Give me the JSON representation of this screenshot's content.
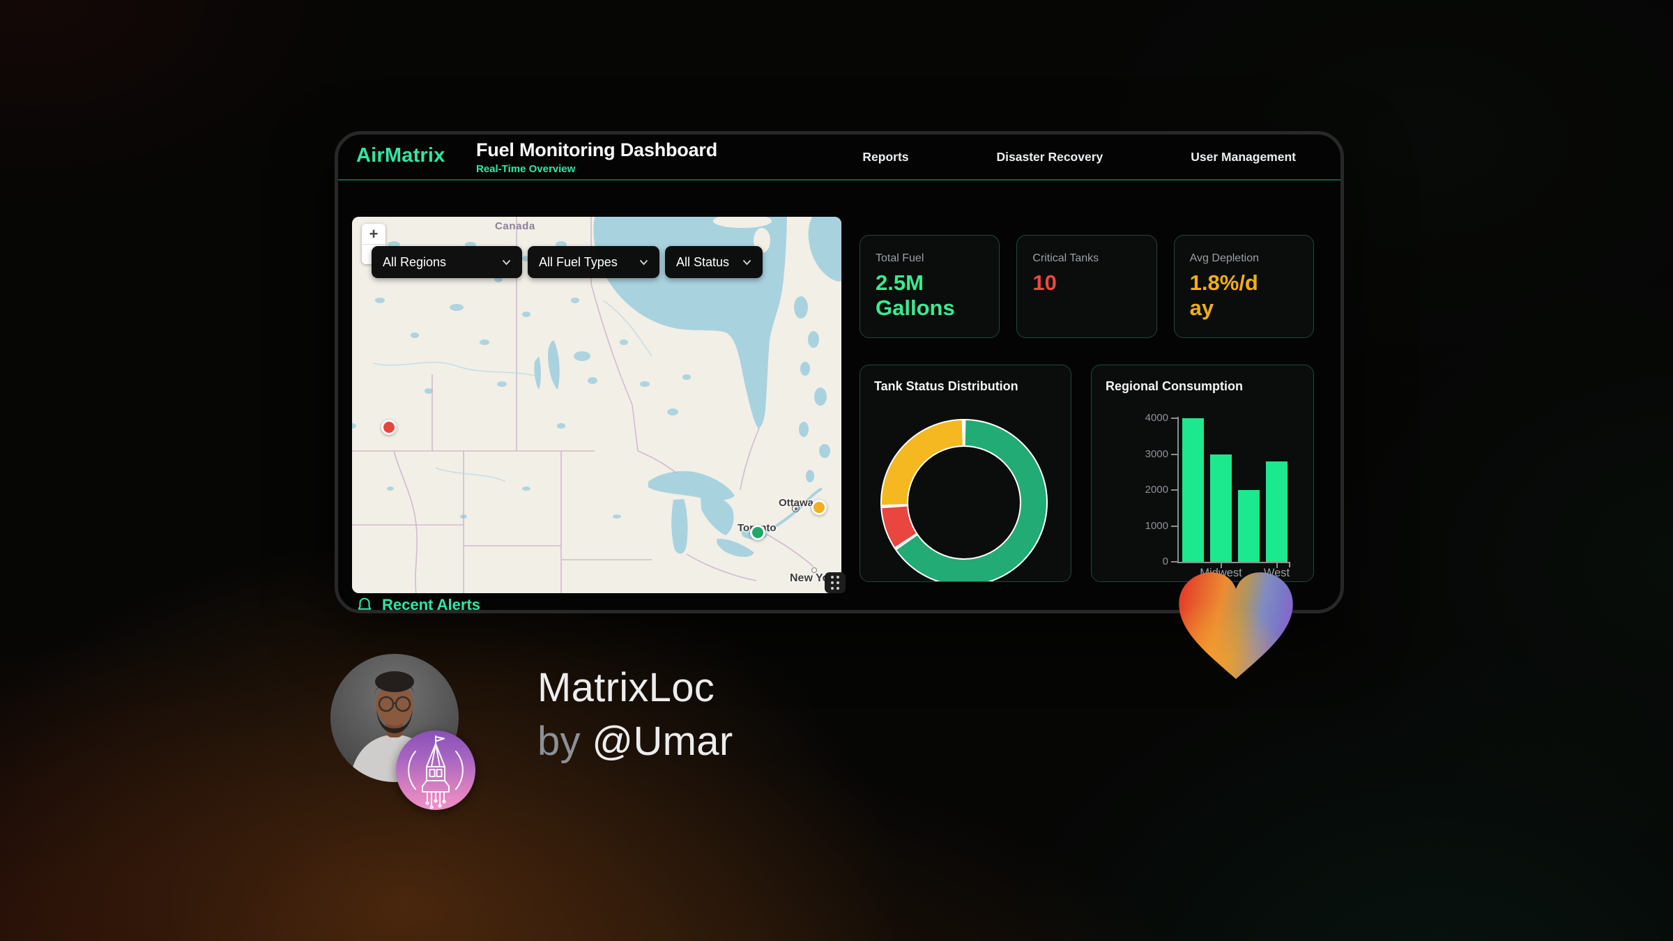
{
  "header": {
    "logo": "AirMatrix",
    "title": "Fuel Monitoring Dashboard",
    "subtitle": "Real-Time Overview",
    "nav": [
      {
        "label": "Reports"
      },
      {
        "label": "Disaster Recovery"
      },
      {
        "label": "User Management"
      }
    ],
    "accent_color": "#2ee8a4"
  },
  "filters": [
    {
      "label": "All Regions"
    },
    {
      "label": "All Fuel Types"
    },
    {
      "label": "All Status"
    }
  ],
  "map": {
    "zoom_in_label": "+",
    "country_label": "Canada",
    "city_labels": [
      {
        "text": "Ottawa"
      },
      {
        "text": "Toronto"
      },
      {
        "text": "New York"
      }
    ],
    "markers": [
      {
        "status_color": "#e8453c",
        "x": 53,
        "y": 302
      },
      {
        "status_color": "#f2b01e",
        "x": 670,
        "y": 417
      },
      {
        "status_color": "#1fa868",
        "x": 582,
        "y": 453
      }
    ]
  },
  "stats": [
    {
      "label": "Total Fuel",
      "value": "2.5M Gallons",
      "color": "#38ed92"
    },
    {
      "label": "Critical Tanks",
      "value": "10",
      "color": "#ef4840"
    },
    {
      "label": "Avg Depletion",
      "value": "1.8%/day",
      "color": "#f0b011"
    }
  ],
  "chart_data": [
    {
      "type": "doughnut",
      "title": "Tank Status Distribution",
      "legend": "none",
      "segments": [
        {
          "name": "green",
          "color": "#22ab74",
          "value": 65
        },
        {
          "name": "red",
          "color": "#e8463e",
          "value": 8
        },
        {
          "name": "yellow",
          "color": "#f5b820",
          "value": 25
        }
      ]
    },
    {
      "type": "bar",
      "title": "Regional Consumption",
      "categories": [
        "",
        "Midwest",
        "",
        "West"
      ],
      "values": [
        4000,
        3000,
        2000,
        2800
      ],
      "bar_color": "#1ce98e",
      "ylim": [
        0,
        4000
      ],
      "yticks": [
        0,
        1000,
        2000,
        3000,
        4000
      ],
      "grid": false,
      "legend": "none"
    }
  ],
  "alerts": {
    "title": "Recent Alerts"
  },
  "profile": {
    "app_name": "MatrixLoc",
    "byline_prefix": "by ",
    "author": "@Umar"
  }
}
